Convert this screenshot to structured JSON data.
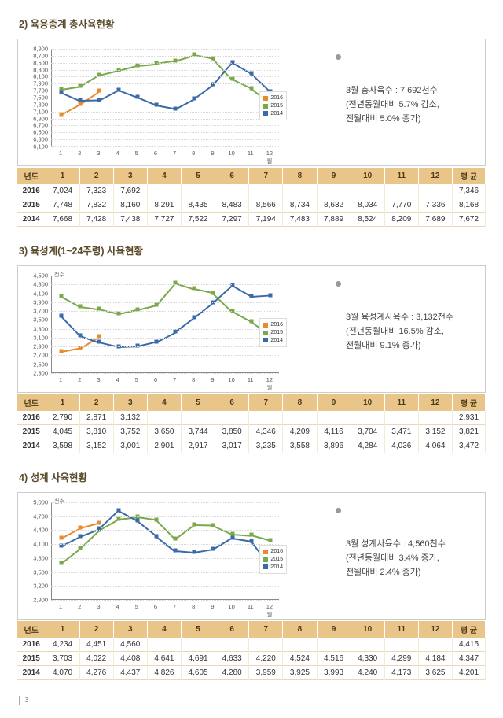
{
  "page_number": "3",
  "colors": {
    "s2016": "#e88b2e",
    "s2015": "#7aa84a",
    "s2014": "#3a6aa8"
  },
  "legend_labels": [
    "2016",
    "2015",
    "2014"
  ],
  "table": {
    "header_year": "년도",
    "header_avg": "평 균",
    "months": [
      "1",
      "2",
      "3",
      "4",
      "5",
      "6",
      "7",
      "8",
      "9",
      "10",
      "11",
      "12"
    ]
  },
  "sections": [
    {
      "title": "2) 육용종계 총사육현황",
      "note": "3월 총사육수 : 7,692천수\n(전년동월대비 5.7% 감소,\n전월대비 5.0% 증가)",
      "yaxis": {
        "min": 6100,
        "max": 8900,
        "ticks": [
          8900,
          8700,
          8500,
          8300,
          8100,
          7900,
          7700,
          7500,
          7300,
          7100,
          6900,
          6700,
          6500,
          6300,
          6100
        ]
      },
      "rows": [
        {
          "year": "2016",
          "vals": [
            "7,024",
            "7,323",
            "7,692",
            "",
            "",
            "",
            "",
            "",
            "",
            "",
            "",
            ""
          ],
          "avg": "7,346",
          "num": [
            7024,
            7323,
            7692,
            null,
            null,
            null,
            null,
            null,
            null,
            null,
            null,
            null
          ]
        },
        {
          "year": "2015",
          "vals": [
            "7,748",
            "7,832",
            "8,160",
            "8,291",
            "8,435",
            "8,483",
            "8,566",
            "8,734",
            "8,632",
            "8,034",
            "7,770",
            "7,336"
          ],
          "avg": "8,168",
          "num": [
            7748,
            7832,
            8160,
            8291,
            8435,
            8483,
            8566,
            8734,
            8632,
            8034,
            7770,
            7336
          ]
        },
        {
          "year": "2014",
          "vals": [
            "7,668",
            "7,428",
            "7,438",
            "7,727",
            "7,522",
            "7,297",
            "7,194",
            "7,483",
            "7,889",
            "8,524",
            "8,209",
            "7,689"
          ],
          "avg": "7,672",
          "num": [
            7668,
            7428,
            7438,
            7727,
            7522,
            7297,
            7194,
            7483,
            7889,
            8524,
            8209,
            7689
          ]
        }
      ],
      "unit": ""
    },
    {
      "title": "3) 육성계(1~24주령) 사육현황",
      "note": "3월 육성계사육수 : 3,132천수\n(전년동월대비 16.5% 감소,\n전월대비 9.1% 증가)",
      "yaxis": {
        "min": 2300,
        "max": 4500,
        "ticks": [
          4500,
          4300,
          4100,
          3900,
          3700,
          3500,
          3300,
          3100,
          2900,
          2700,
          2500,
          2300
        ]
      },
      "rows": [
        {
          "year": "2016",
          "vals": [
            "2,790",
            "2,871",
            "3,132",
            "",
            "",
            "",
            "",
            "",
            "",
            "",
            "",
            ""
          ],
          "avg": "2,931",
          "num": [
            2790,
            2871,
            3132,
            null,
            null,
            null,
            null,
            null,
            null,
            null,
            null,
            null
          ]
        },
        {
          "year": "2015",
          "vals": [
            "4,045",
            "3,810",
            "3,752",
            "3,650",
            "3,744",
            "3,850",
            "4,346",
            "4,209",
            "4,116",
            "3,704",
            "3,471",
            "3,152"
          ],
          "avg": "3,821",
          "num": [
            4045,
            3810,
            3752,
            3650,
            3744,
            3850,
            4346,
            4209,
            4116,
            3704,
            3471,
            3152
          ]
        },
        {
          "year": "2014",
          "vals": [
            "3,598",
            "3,152",
            "3,001",
            "2,901",
            "2,917",
            "3,017",
            "3,235",
            "3,558",
            "3,896",
            "4,284",
            "4,036",
            "4,064"
          ],
          "avg": "3,472",
          "num": [
            3598,
            3152,
            3001,
            2901,
            2917,
            3017,
            3235,
            3558,
            3896,
            4284,
            4036,
            4064
          ]
        }
      ],
      "unit": "천수"
    },
    {
      "title": "4) 성계 사육현황",
      "note": "3월 성계사육수 : 4,560천수\n(전년동월대비 3.4% 증가,\n전월대비 2.4% 증가)",
      "yaxis": {
        "min": 2900,
        "max": 5000,
        "ticks": [
          5000,
          4700,
          4400,
          4100,
          3800,
          3500,
          3200,
          2900
        ]
      },
      "rows": [
        {
          "year": "2016",
          "vals": [
            "4,234",
            "4,451",
            "4,560",
            "",
            "",
            "",
            "",
            "",
            "",
            "",
            "",
            ""
          ],
          "avg": "4,415",
          "num": [
            4234,
            4451,
            4560,
            null,
            null,
            null,
            null,
            null,
            null,
            null,
            null,
            null
          ]
        },
        {
          "year": "2015",
          "vals": [
            "3,703",
            "4,022",
            "4,408",
            "4,641",
            "4,691",
            "4,633",
            "4,220",
            "4,524",
            "4,516",
            "4,330",
            "4,299",
            "4,184"
          ],
          "avg": "4,347",
          "num": [
            3703,
            4022,
            4408,
            4641,
            4691,
            4633,
            4220,
            4524,
            4516,
            4330,
            4299,
            4184
          ]
        },
        {
          "year": "2014",
          "vals": [
            "4,070",
            "4,276",
            "4,437",
            "4,826",
            "4,605",
            "4,280",
            "3,959",
            "3,925",
            "3,993",
            "4,240",
            "4,173",
            "3,625"
          ],
          "avg": "4,201",
          "num": [
            4070,
            4276,
            4437,
            4826,
            4605,
            4280,
            3959,
            3925,
            3993,
            4240,
            4173,
            3625
          ]
        }
      ],
      "unit": "천수"
    }
  ]
}
